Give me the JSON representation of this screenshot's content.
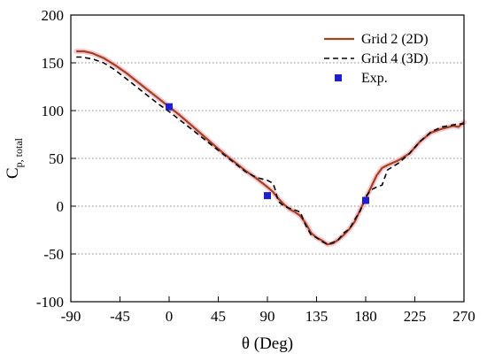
{
  "chart_data": {
    "type": "line",
    "xlabel": "θ (Deg)",
    "ylabel_main": "C",
    "ylabel_sub": "p, total",
    "xlim": [
      -90,
      270
    ],
    "ylim": [
      -100,
      200
    ],
    "xticks": [
      -90,
      -45,
      0,
      45,
      90,
      135,
      180,
      225,
      270
    ],
    "yticks": [
      -100,
      -50,
      0,
      50,
      100,
      150,
      200
    ],
    "grid": "horizontal dotted",
    "legend_position": "top-right",
    "series": [
      {
        "name": "Grid 2 (2D)",
        "style": "solid",
        "color": "#a0421f",
        "x": [
          -85,
          -78,
          -70,
          -60,
          -50,
          -40,
          -30,
          -20,
          -10,
          0,
          10,
          20,
          30,
          40,
          50,
          60,
          70,
          80,
          90,
          95,
          100,
          105,
          110,
          115,
          120,
          125,
          130,
          135,
          140,
          145,
          150,
          155,
          160,
          165,
          170,
          175,
          180,
          185,
          190,
          195,
          200,
          210,
          220,
          230,
          240,
          250,
          260,
          265,
          268,
          270
        ],
        "y": [
          162,
          162,
          160,
          155,
          148,
          140,
          131,
          122,
          113,
          104,
          95,
          85,
          75,
          65,
          55,
          46,
          37,
          29,
          20,
          15,
          8,
          2,
          -3,
          -6,
          -10,
          -18,
          -28,
          -33,
          -36,
          -40,
          -39,
          -35,
          -30,
          -24,
          -16,
          -4,
          8,
          20,
          32,
          40,
          43,
          48,
          55,
          68,
          77,
          81,
          84,
          83,
          86,
          88
        ]
      },
      {
        "name": "Grid 4 (3D)",
        "style": "dashed",
        "color": "#000000",
        "x": [
          -85,
          -80,
          -70,
          -60,
          -50,
          -40,
          -30,
          -20,
          -10,
          0,
          10,
          20,
          30,
          40,
          50,
          60,
          70,
          80,
          90,
          95,
          97,
          100,
          105,
          110,
          115,
          120,
          125,
          130,
          135,
          140,
          145,
          150,
          155,
          160,
          165,
          170,
          175,
          180,
          185,
          190,
          195,
          200,
          210,
          220,
          230,
          240,
          250,
          260,
          265,
          270
        ],
        "y": [
          156,
          156,
          154,
          150,
          143,
          134,
          125,
          116,
          107,
          99,
          90,
          81,
          72,
          63,
          54,
          45,
          36,
          30,
          27,
          24,
          18,
          5,
          0,
          -2,
          -4,
          -6,
          -20,
          -30,
          -33,
          -37,
          -40,
          -38,
          -35,
          -28,
          -24,
          -14,
          -5,
          10,
          17,
          20,
          22,
          38,
          45,
          55,
          68,
          78,
          83,
          85,
          86,
          86
        ]
      },
      {
        "name": "Exp.",
        "style": "marker",
        "color": "#1f1fcc",
        "x": [
          0,
          90,
          180
        ],
        "y": [
          104,
          11,
          6
        ]
      }
    ]
  }
}
